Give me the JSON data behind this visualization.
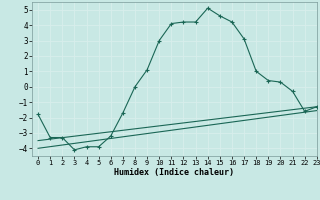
{
  "xlabel": "Humidex (Indice chaleur)",
  "xlim": [
    -0.5,
    23
  ],
  "ylim": [
    -4.5,
    5.5
  ],
  "xticks": [
    0,
    1,
    2,
    3,
    4,
    5,
    6,
    7,
    8,
    9,
    10,
    11,
    12,
    13,
    14,
    15,
    16,
    17,
    18,
    19,
    20,
    21,
    22,
    23
  ],
  "yticks": [
    -4,
    -3,
    -2,
    -1,
    0,
    1,
    2,
    3,
    4,
    5
  ],
  "bg_color": "#c8e8e4",
  "grid_color": "#e8f8f8",
  "line_color": "#1a6655",
  "curve_x": [
    0,
    1,
    2,
    3,
    4,
    5,
    6,
    7,
    8,
    9,
    10,
    11,
    12,
    13,
    14,
    15,
    16,
    17,
    18,
    19,
    20,
    21,
    22,
    23
  ],
  "curve_y": [
    -1.8,
    -3.3,
    -3.3,
    -4.1,
    -3.9,
    -3.9,
    -3.2,
    -1.7,
    0.0,
    1.1,
    3.0,
    4.1,
    4.2,
    4.2,
    5.1,
    4.6,
    4.2,
    3.1,
    1.0,
    0.4,
    0.3,
    -0.3,
    -1.6,
    -1.3
  ],
  "line1_x": [
    0,
    23
  ],
  "line1_y": [
    -3.5,
    -1.3
  ],
  "line2_x": [
    0,
    23
  ],
  "line2_y": [
    -4.0,
    -1.55
  ],
  "figsize": [
    3.2,
    2.0
  ],
  "dpi": 100
}
